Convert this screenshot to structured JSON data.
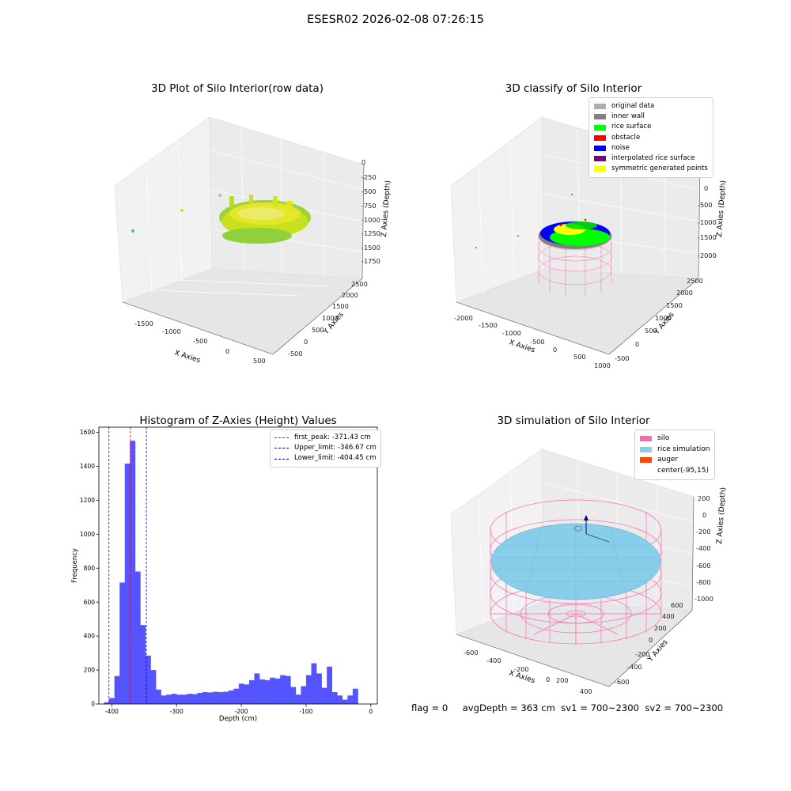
{
  "suptitle": "ESESR02 2026-02-08 07:26:15",
  "status": {
    "flag": "flag = 0",
    "avg_depth": "avgDepth = 363 cm",
    "sv1": "sv1 = 700~2300",
    "sv2": "sv2 = 700~2300"
  },
  "colors": {
    "histogram_bars": "#5555ff",
    "first_peak": "#ff0000",
    "limits": "#0000cc",
    "silo": "#ff69b4",
    "rice_simulation": "#87ceeb",
    "auger": "#ff4500"
  },
  "plot1": {
    "title": "3D Plot of Silo Interior(row data)",
    "xlabel": "X Axies",
    "ylabel": "Y Axies",
    "zlabel": "Z Axies (Depth)",
    "x_ticks": [
      "-1500",
      "-1000",
      "-500",
      "0",
      "500"
    ],
    "y_ticks": [
      "-500",
      "0",
      "500",
      "1000",
      "1500",
      "2000",
      "2500"
    ],
    "z_ticks": [
      "0",
      "-250",
      "-500",
      "-750",
      "-1000",
      "-1250",
      "-1500",
      "-1750"
    ]
  },
  "plot2": {
    "title": "3D classify of Silo Interior",
    "xlabel": "X Axies",
    "ylabel": "Y Axies",
    "zlabel": "Z Axies (Depth)",
    "x_ticks": [
      "-2000",
      "-1500",
      "-1000",
      "-500",
      "0",
      "500",
      "1000"
    ],
    "y_ticks": [
      "-500",
      "0",
      "500",
      "1000",
      "1500",
      "2000",
      "2500"
    ],
    "z_ticks": [
      "0",
      "-500",
      "-1000",
      "-1500",
      "-2000"
    ],
    "legend": [
      {
        "label": "original data",
        "color": "#b0b0b0"
      },
      {
        "label": "inner wall",
        "color": "#808080"
      },
      {
        "label": "rice surface",
        "color": "#00ff00"
      },
      {
        "label": "obstacle",
        "color": "#ff0000"
      },
      {
        "label": "noise",
        "color": "#0000ff"
      },
      {
        "label": "interpolated rice surface",
        "color": "#800080"
      },
      {
        "label": "symmetric generated points",
        "color": "#ffff00"
      }
    ]
  },
  "plot4": {
    "title": "3D simulation of Silo Interior",
    "xlabel": "X Axies",
    "ylabel": "Y Axies",
    "zlabel": "Z Axies (Depth)",
    "x_ticks": [
      "-600",
      "-400",
      "-200",
      "0",
      "200",
      "400"
    ],
    "y_ticks": [
      "-600",
      "-400",
      "-200",
      "0",
      "200",
      "400",
      "600"
    ],
    "z_ticks": [
      "200",
      "0",
      "-200",
      "-400",
      "-600",
      "-800",
      "-1000"
    ],
    "legend": [
      {
        "label": "silo",
        "color": "#ff69b4"
      },
      {
        "label": "rice simulation",
        "color": "#87ceeb"
      },
      {
        "label": "auger",
        "color": "#ff4500"
      },
      {
        "label": "center(-95,15)",
        "color": "#ffffff"
      }
    ]
  },
  "chart_data": {
    "type": "bar",
    "title": "Histogram of Z-Axies (Height) Values",
    "xlabel": "Depth (cm)",
    "ylabel": "Frequency",
    "xlim": [
      -420,
      10
    ],
    "ylim": [
      0,
      1630
    ],
    "x_ticks": [
      -400,
      -300,
      -200,
      -100,
      0
    ],
    "y_ticks": [
      0,
      200,
      400,
      600,
      800,
      1000,
      1200,
      1400,
      1600
    ],
    "bin_start": -412,
    "bin_width": 8,
    "values": [
      10,
      35,
      165,
      715,
      1415,
      1550,
      780,
      465,
      285,
      200,
      85,
      50,
      55,
      60,
      55,
      55,
      60,
      58,
      65,
      70,
      68,
      72,
      70,
      72,
      80,
      90,
      120,
      115,
      140,
      180,
      145,
      140,
      155,
      150,
      170,
      165,
      100,
      55,
      105,
      170,
      240,
      180,
      95,
      220,
      70,
      50,
      25,
      50,
      90
    ],
    "legend_placement": "top-right",
    "reference_lines": [
      {
        "name": "first_peak: -371.43 cm",
        "x": -371.43,
        "color": "#ff0000"
      },
      {
        "name": "Upper_limit: -346.67 cm",
        "x": -346.67,
        "color": "#0000cc"
      },
      {
        "name": "Lower_limit: -404.45 cm",
        "x": -404.45,
        "color": "#0000cc"
      }
    ]
  }
}
